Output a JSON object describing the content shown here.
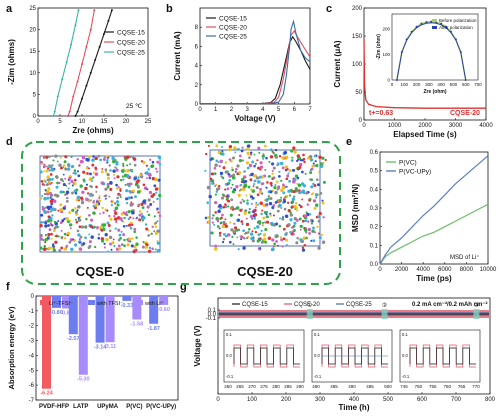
{
  "panel_labels": {
    "a": "a",
    "b": "b",
    "c": "c",
    "d": "d",
    "e": "e",
    "f": "f",
    "g": "g"
  },
  "chart_data": [
    {
      "id": "a",
      "type": "line",
      "xlabel": "Zre (ohms)",
      "ylabel": "-Zim (ohms)",
      "xlim": [
        0,
        25
      ],
      "ylim": [
        0,
        25
      ],
      "xticks": [
        "0",
        "5",
        "10",
        "15",
        "20",
        "25"
      ],
      "yticks": [
        "0",
        "5",
        "10",
        "15",
        "20",
        "25"
      ],
      "annotation": "25 ℃",
      "legend": "top-right",
      "series": [
        {
          "name": "CQSE-15",
          "color": "#1a1a1a",
          "x": [
            8.5,
            9,
            10,
            11,
            12,
            13,
            14,
            15,
            16,
            16.8
          ],
          "y": [
            0,
            1,
            4,
            7,
            10,
            13,
            16,
            19,
            22,
            24.5
          ]
        },
        {
          "name": "CQSE-20",
          "color": "#e05060",
          "x": [
            6.8,
            7.2,
            8,
            9,
            10,
            11,
            12,
            12.8
          ],
          "y": [
            0,
            1,
            4.5,
            8,
            12,
            16,
            20,
            24.5
          ]
        },
        {
          "name": "CQSE-25",
          "color": "#3ab5a5",
          "x": [
            3.5,
            3.8,
            4.5,
            5.5,
            6.5,
            7.5,
            8.5,
            9.2
          ],
          "y": [
            0,
            1,
            4.5,
            8.5,
            12.5,
            16.5,
            21,
            24.5
          ]
        }
      ]
    },
    {
      "id": "b",
      "type": "line",
      "xlabel": "Voltage (V)",
      "ylabel": "Current (mA)",
      "xlim": [
        0,
        7
      ],
      "ylim": [
        0,
        10
      ],
      "xticks": [
        "0",
        "1",
        "2",
        "3",
        "4",
        "5",
        "6",
        "7"
      ],
      "yticks": [
        "0",
        "2",
        "4",
        "6",
        "8"
      ],
      "legend": "top-left",
      "series": [
        {
          "name": "CQSE-15",
          "color": "#1a1a1a",
          "x": [
            0,
            4,
            4.5,
            4.8,
            5.1,
            5.4,
            5.7,
            5.9,
            6.1,
            6.4,
            6.7,
            7
          ],
          "y": [
            0.05,
            0.05,
            0.15,
            0.6,
            2,
            4.2,
            6.4,
            7,
            6.5,
            5.6,
            4.5,
            3.6
          ]
        },
        {
          "name": "CQSE-20",
          "color": "#e05060",
          "x": [
            0,
            4.2,
            4.7,
            5.0,
            5.3,
            5.6,
            5.8,
            6.0,
            6.2,
            6.5,
            6.8,
            7
          ],
          "y": [
            0.05,
            0.05,
            0.15,
            0.7,
            2.6,
            5.3,
            7.2,
            7.6,
            7,
            6.2,
            5.4,
            4.9
          ]
        },
        {
          "name": "CQSE-25",
          "color": "#3b6ea8",
          "x": [
            0,
            4.5,
            5.0,
            5.3,
            5.5,
            5.7,
            5.8,
            5.95,
            6.1,
            6.4,
            6.7,
            7
          ],
          "y": [
            0.05,
            0.05,
            0.2,
            1,
            3,
            6,
            7.8,
            8.6,
            7.4,
            5.6,
            4.8,
            4.4
          ]
        }
      ]
    },
    {
      "id": "c",
      "type": "line",
      "xlabel": "Elapsed Time (s)",
      "ylabel": "Current (μA)",
      "xlim": [
        0,
        4000
      ],
      "ylim": [
        0,
        200
      ],
      "xticks": [
        "0",
        "1000",
        "2000",
        "3000",
        "4000"
      ],
      "yticks": [
        "0",
        "50",
        "100",
        "150",
        "200"
      ],
      "annotation": "t+=0.63",
      "series_label": "CQSE-20",
      "series": [
        {
          "name": "CQSE-20",
          "color": "#e03030",
          "x": [
            0,
            20,
            60,
            150,
            400,
            1000,
            2000,
            3000,
            4000
          ],
          "y": [
            145,
            60,
            36,
            28,
            24,
            22,
            21,
            21,
            21
          ]
        }
      ],
      "inset": {
        "xlabel": "Zre (ohm)",
        "ylabel": "-Zim (ohm)",
        "xticks": [
          "0",
          "100",
          "200",
          "300",
          "400",
          "500",
          "600",
          "700"
        ],
        "yticks": [
          "0",
          "100",
          "200"
        ],
        "legend": [
          "Before polarization",
          "After polarization"
        ],
        "legend_colors": [
          "#a8d060",
          "#2a3fa8"
        ],
        "x": [
          40,
          80,
          120,
          160,
          200,
          240,
          280,
          320,
          360,
          400,
          440,
          480,
          520,
          560,
          600
        ],
        "y": [
          0,
          110,
          160,
          190,
          210,
          222,
          228,
          230,
          228,
          222,
          210,
          190,
          160,
          110,
          0
        ]
      }
    },
    {
      "id": "e",
      "type": "line",
      "xlabel": "Time (ps)",
      "ylabel": "MSD (nm²/N)",
      "xlim": [
        0,
        10000
      ],
      "ylim": [
        0,
        0.6
      ],
      "xticks": [
        "0",
        "2000",
        "4000",
        "6000",
        "8000",
        "10000"
      ],
      "yticks": [
        "0.0",
        "0.1",
        "0.2",
        "0.3",
        "0.4",
        "0.5",
        "0.6"
      ],
      "annotation": "MSD of Li⁺",
      "legend": "top-left",
      "series": [
        {
          "name": "P(VC)",
          "color": "#6abf6a",
          "x": [
            0,
            500,
            1000,
            2000,
            3000,
            4000,
            5000,
            6000,
            7000,
            8000,
            9000,
            10000
          ],
          "y": [
            0,
            0.04,
            0.06,
            0.09,
            0.12,
            0.15,
            0.17,
            0.2,
            0.23,
            0.26,
            0.29,
            0.32
          ]
        },
        {
          "name": "P(VC-UPy)",
          "color": "#5b7fc4",
          "x": [
            0,
            500,
            1000,
            2000,
            3000,
            4000,
            5000,
            6000,
            7000,
            8000,
            9000,
            10000
          ],
          "y": [
            0,
            0.05,
            0.09,
            0.14,
            0.2,
            0.26,
            0.31,
            0.37,
            0.43,
            0.48,
            0.53,
            0.58
          ]
        }
      ]
    },
    {
      "id": "f",
      "type": "bar",
      "ylabel": "Absorption energy (eV)",
      "ylim": [
        -7,
        0
      ],
      "yticks": [
        "0",
        "-1",
        "-2",
        "-3",
        "-4",
        "-5",
        "-6",
        "-7"
      ],
      "categories": [
        "PVDF-HFP",
        "LATP",
        "UPyMA",
        "P(VC)",
        "P(VC-UPy)"
      ],
      "legend": "top",
      "series": [
        {
          "name": "Li⁺-TFSI⁻",
          "color": "#f05a60",
          "values": [
            -6.24,
            null,
            null,
            null,
            null
          ]
        },
        {
          "name": "with TFSI⁻",
          "color": "#6d7df0",
          "values": [
            -0.8,
            -2.57,
            -3.14,
            -0.33,
            -1.87
          ]
        },
        {
          "name": "with Li⁺",
          "color": "#a78bfa",
          "values": [
            -0.84,
            -5.3,
            -3.11,
            -1.58,
            -0.6
          ]
        }
      ],
      "value_labels": [
        "-6.24",
        "-0.80",
        "-0.84",
        "-2.57",
        "-5.30",
        "-3.14",
        "-3.11",
        "-0.33",
        "-1.58",
        "-1.87",
        "-0.60"
      ]
    },
    {
      "id": "g",
      "type": "line",
      "xlabel": "Time (h)",
      "ylabel": "Voltage (V)",
      "xlim": [
        0,
        800
      ],
      "ylim": [
        -0.1,
        0.1
      ],
      "xticks": [
        "0",
        "100",
        "200",
        "300",
        "400",
        "500",
        "600",
        "700",
        "800"
      ],
      "yticks": [
        "-0.1",
        "0.0",
        "0.1"
      ],
      "condition": "0.2 mA cm⁻²/0.2 mAh cm⁻²",
      "legend": "top",
      "series": [
        {
          "name": "CQSE-15",
          "color": "#1a1a1a"
        },
        {
          "name": "CQSE-20",
          "color": "#e05060"
        },
        {
          "name": "CQSE-25",
          "color": "#3b6ea8"
        }
      ],
      "markers": [
        "①",
        "②",
        "③"
      ],
      "insets": [
        {
          "xticks": [
            "260",
            "265",
            "270",
            "275",
            "280",
            "285",
            "290"
          ],
          "yticks": [
            "0.1",
            "0.0",
            "-0.1"
          ]
        },
        {
          "xticks": [
            "480",
            "485",
            "490",
            "495",
            "500"
          ],
          "yticks": [
            "0.1",
            "0.0",
            "-0.1"
          ]
        },
        {
          "xticks": [
            "745",
            "750",
            "755",
            "760",
            "765",
            "770"
          ],
          "yticks": [
            "0.1",
            "0.0",
            "-0.1"
          ]
        }
      ]
    }
  ],
  "panel_d": {
    "left_label": "CQSE-0",
    "right_label": "CQSE-20"
  }
}
